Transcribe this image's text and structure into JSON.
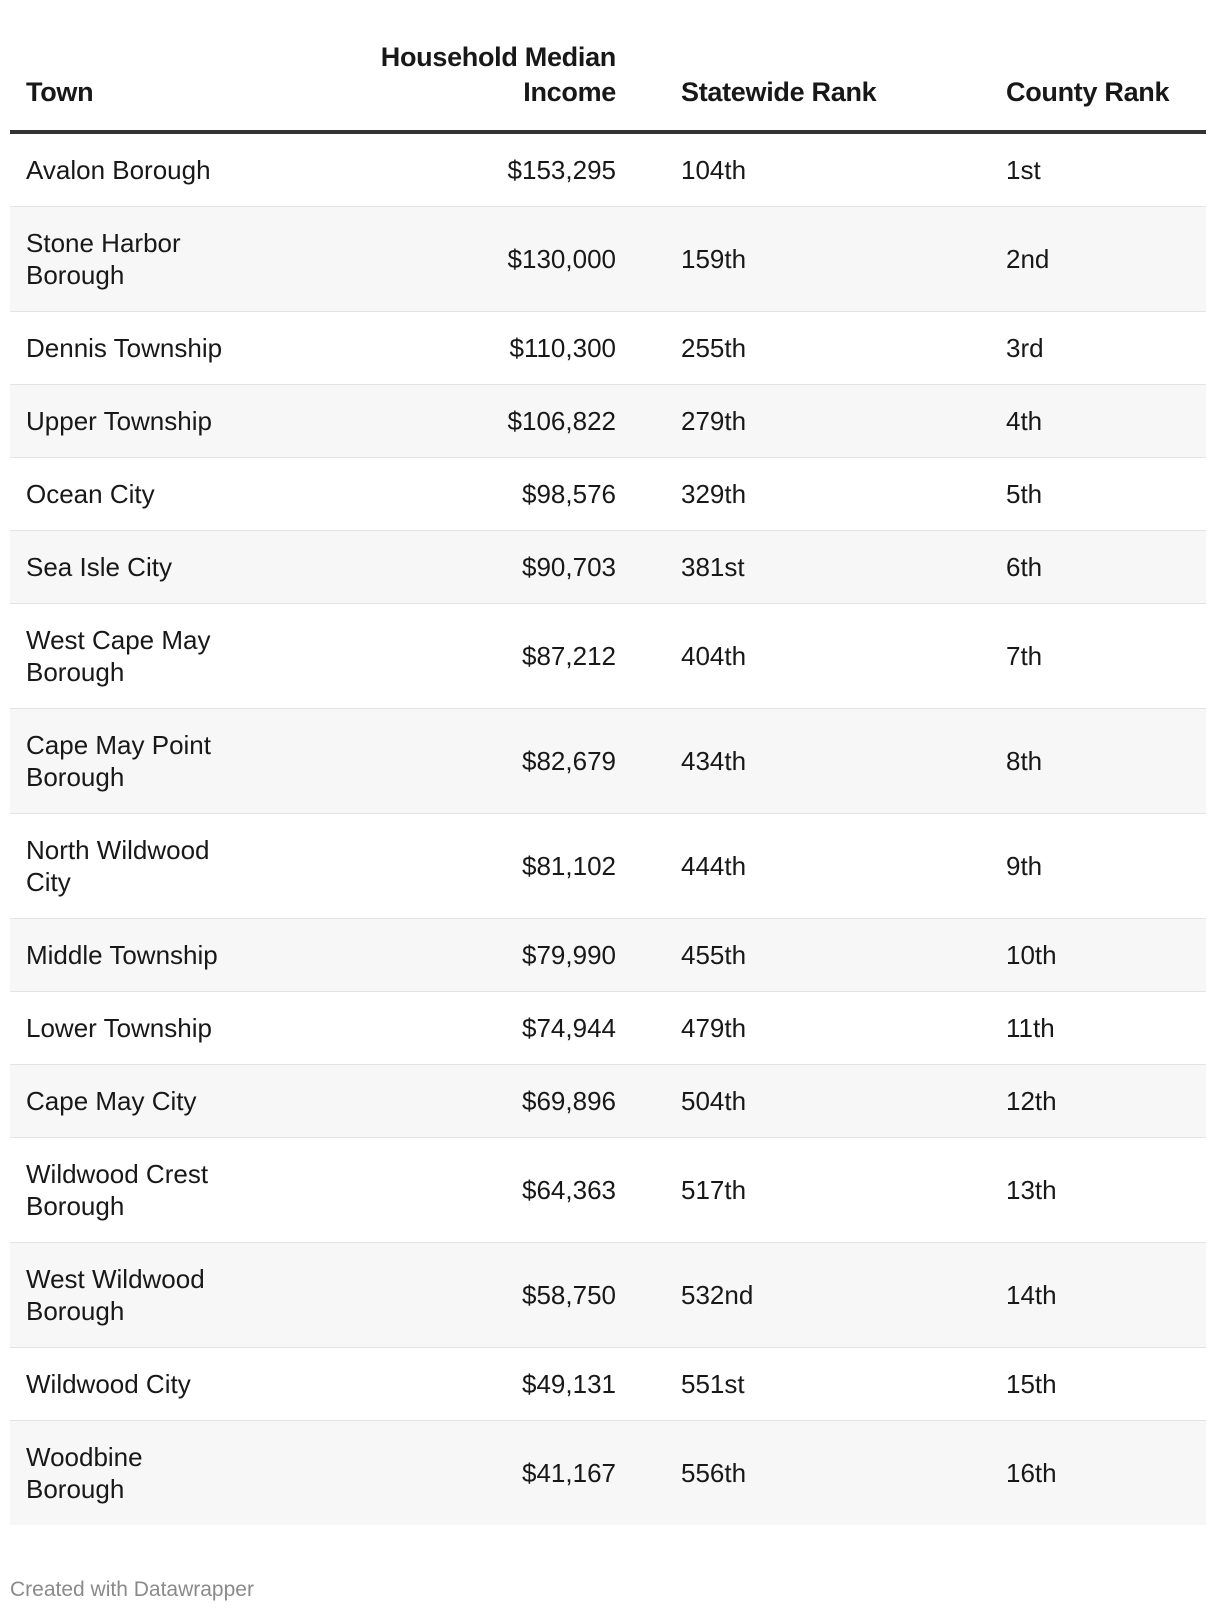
{
  "table": {
    "headers": [
      "Town",
      "Household Median Income",
      "Statewide Rank",
      "County Rank"
    ],
    "rows": [
      {
        "town": "Avalon Borough",
        "income": "$153,295",
        "statewide_rank": "104th",
        "county_rank": "1st"
      },
      {
        "town": "Stone Harbor Borough",
        "income": "$130,000",
        "statewide_rank": "159th",
        "county_rank": "2nd"
      },
      {
        "town": "Dennis Township",
        "income": "$110,300",
        "statewide_rank": "255th",
        "county_rank": "3rd"
      },
      {
        "town": "Upper Township",
        "income": "$106,822",
        "statewide_rank": "279th",
        "county_rank": "4th"
      },
      {
        "town": "Ocean City",
        "income": "$98,576",
        "statewide_rank": "329th",
        "county_rank": "5th"
      },
      {
        "town": "Sea Isle City",
        "income": "$90,703",
        "statewide_rank": "381st",
        "county_rank": "6th"
      },
      {
        "town": "West Cape May Borough",
        "income": "$87,212",
        "statewide_rank": "404th",
        "county_rank": "7th"
      },
      {
        "town": "Cape May Point Borough",
        "income": "$82,679",
        "statewide_rank": "434th",
        "county_rank": "8th"
      },
      {
        "town": "North Wildwood City",
        "income": "$81,102",
        "statewide_rank": "444th",
        "county_rank": "9th"
      },
      {
        "town": "Middle Township",
        "income": "$79,990",
        "statewide_rank": "455th",
        "county_rank": "10th"
      },
      {
        "town": "Lower Township",
        "income": "$74,944",
        "statewide_rank": "479th",
        "county_rank": "11th"
      },
      {
        "town": "Cape May City",
        "income": "$69,896",
        "statewide_rank": "504th",
        "county_rank": "12th"
      },
      {
        "town": "Wildwood Crest Borough",
        "income": "$64,363",
        "statewide_rank": "517th",
        "county_rank": "13th"
      },
      {
        "town": "West Wildwood Borough",
        "income": "$58,750",
        "statewide_rank": "532nd",
        "county_rank": "14th"
      },
      {
        "town": "Wildwood City",
        "income": "$49,131",
        "statewide_rank": "551st",
        "county_rank": "15th"
      },
      {
        "town": "Woodbine Borough",
        "income": "$41,167",
        "statewide_rank": "556th",
        "county_rank": "16th"
      }
    ]
  },
  "footer": {
    "credit": "Created with Datawrapper"
  }
}
